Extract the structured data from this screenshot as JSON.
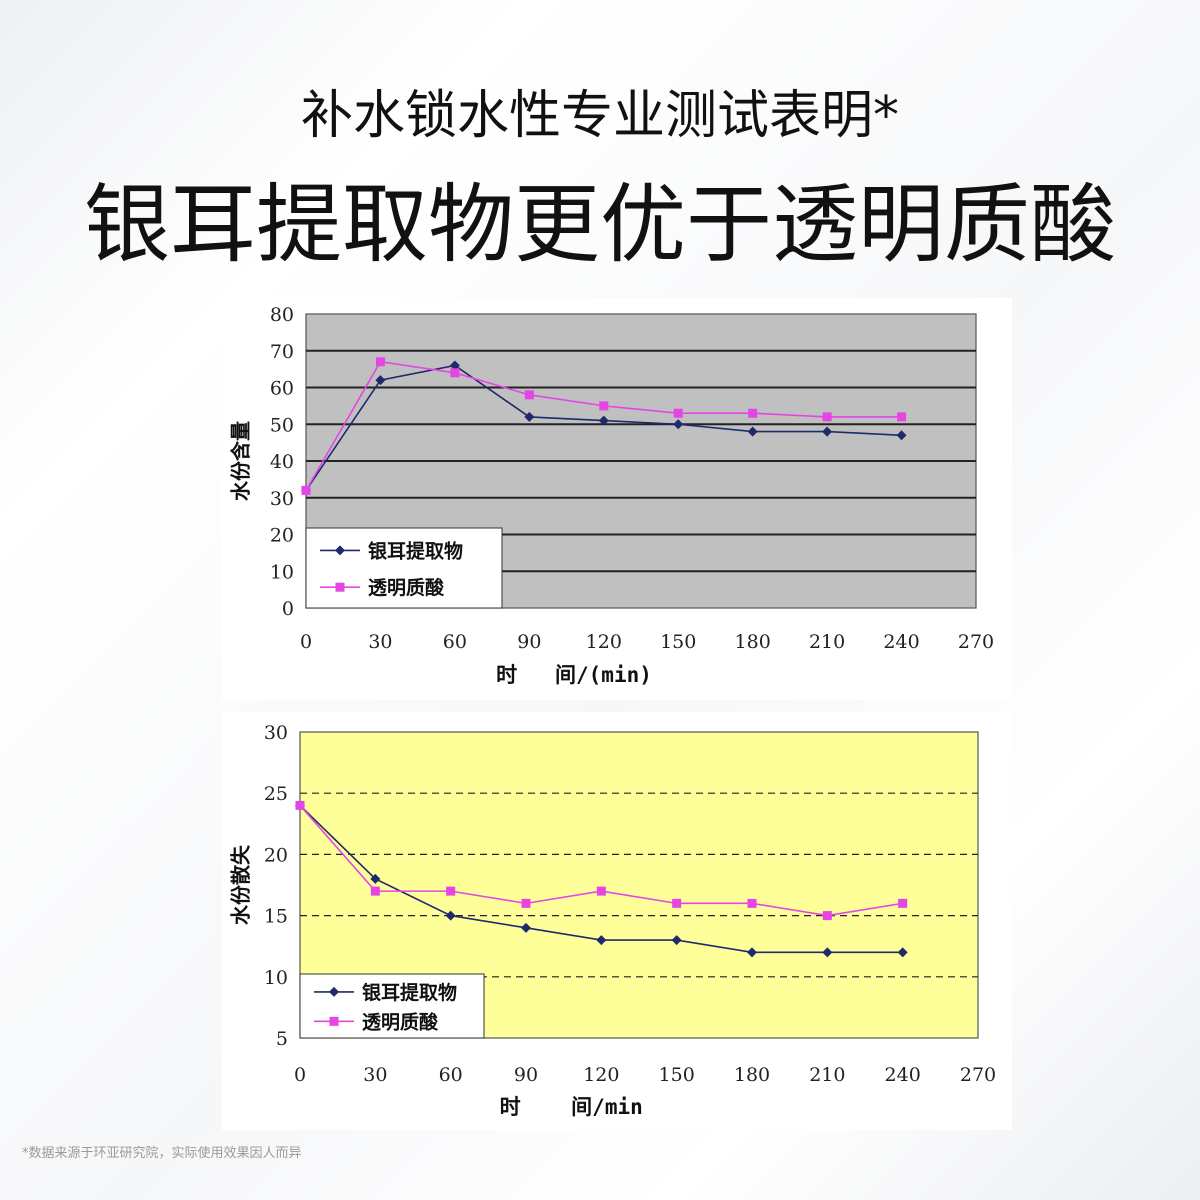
{
  "header": {
    "subtitle": "补水锁水性专业测试表明*",
    "title": "银耳提取物更优于透明质酸"
  },
  "footnote": "*数据来源于环亚研究院，实际使用效果因人而异",
  "colors": {
    "series_a": "#1f2a6b",
    "series_b": "#e645e6",
    "chart1_bg": "#c0c0c0",
    "chart2_bg": "#ffff99"
  },
  "chart_data": [
    {
      "type": "line",
      "ylabel": "水份含量",
      "xlabel": "时   间/(min)",
      "x": [
        0,
        30,
        60,
        90,
        120,
        150,
        180,
        210,
        240
      ],
      "xticks": [
        "0",
        "30",
        "60",
        "90",
        "120",
        "150",
        "180",
        "210",
        "240",
        "270"
      ],
      "yticks": [
        "0",
        "10",
        "20",
        "30",
        "40",
        "50",
        "60",
        "70",
        "80"
      ],
      "xlim": [
        0,
        270
      ],
      "ylim": [
        0,
        80
      ],
      "grid": "solid",
      "legend_position": "bottom-left",
      "series": [
        {
          "name": "银耳提取物",
          "marker": "diamond",
          "values": [
            32,
            62,
            66,
            52,
            51,
            50,
            48,
            48,
            47
          ]
        },
        {
          "name": "透明质酸",
          "marker": "square",
          "values": [
            32,
            67,
            64,
            58,
            55,
            53,
            53,
            52,
            52
          ]
        }
      ]
    },
    {
      "type": "line",
      "ylabel": "水份散失",
      "xlabel": "时    间/min",
      "x": [
        0,
        30,
        60,
        90,
        120,
        150,
        180,
        210,
        240
      ],
      "xticks": [
        "0",
        "30",
        "60",
        "90",
        "120",
        "150",
        "180",
        "210",
        "240",
        "270"
      ],
      "yticks": [
        "5",
        "10",
        "15",
        "20",
        "25",
        "30"
      ],
      "xlim": [
        0,
        270
      ],
      "ylim": [
        5,
        30
      ],
      "grid": "dashed",
      "legend_position": "bottom-left",
      "series": [
        {
          "name": "银耳提取物",
          "marker": "diamond",
          "values": [
            24,
            18,
            15,
            14,
            13,
            13,
            12,
            12,
            12
          ]
        },
        {
          "name": "透明质酸",
          "marker": "square",
          "values": [
            24,
            17,
            17,
            16,
            17,
            16,
            16,
            15,
            16
          ]
        }
      ]
    }
  ]
}
